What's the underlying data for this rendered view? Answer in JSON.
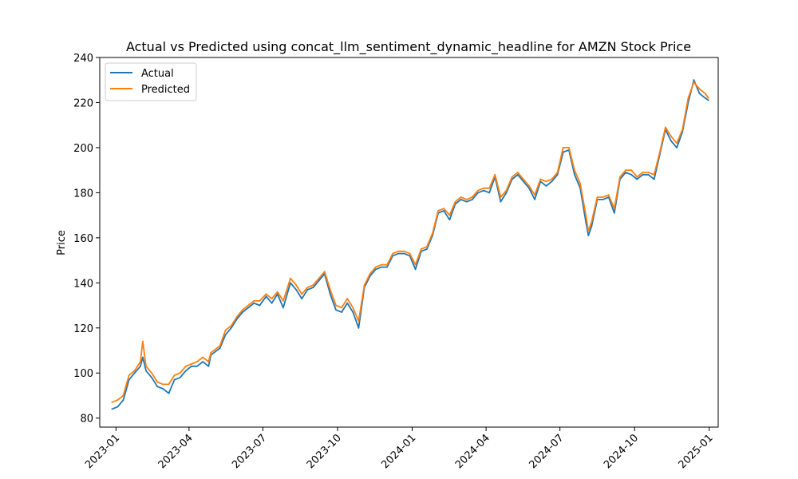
{
  "chart_data": {
    "type": "line",
    "title": "Actual vs Predicted using concat_llm_sentiment_dynamic_headline for AMZN Stock Price",
    "xlabel": "",
    "ylabel": "Price",
    "xlim": [
      "2022-12-12",
      "2025-01-12"
    ],
    "ylim": [
      76,
      240
    ],
    "x_ticks": [
      "2023-01",
      "2023-04",
      "2023-07",
      "2023-10",
      "2024-01",
      "2024-04",
      "2024-07",
      "2024-10",
      "2025-01"
    ],
    "y_ticks": [
      80,
      100,
      120,
      140,
      160,
      180,
      200,
      220,
      240
    ],
    "grid": false,
    "legend": {
      "placement": "upper-left",
      "entries": [
        "Actual",
        "Predicted"
      ]
    },
    "colors": {
      "Actual": "#1f77b4",
      "Predicted": "#ff7f0e"
    },
    "x": [
      "2022-12-27",
      "2023-01-03",
      "2023-01-10",
      "2023-01-17",
      "2023-01-24",
      "2023-01-31",
      "2023-02-03",
      "2023-02-07",
      "2023-02-14",
      "2023-02-21",
      "2023-02-28",
      "2023-03-07",
      "2023-03-14",
      "2023-03-21",
      "2023-03-28",
      "2023-04-04",
      "2023-04-11",
      "2023-04-18",
      "2023-04-25",
      "2023-04-28",
      "2023-05-09",
      "2023-05-16",
      "2023-05-23",
      "2023-05-30",
      "2023-06-06",
      "2023-06-13",
      "2023-06-20",
      "2023-06-27",
      "2023-07-05",
      "2023-07-12",
      "2023-07-19",
      "2023-07-26",
      "2023-08-04",
      "2023-08-11",
      "2023-08-18",
      "2023-08-25",
      "2023-09-01",
      "2023-09-08",
      "2023-09-15",
      "2023-09-22",
      "2023-09-29",
      "2023-10-06",
      "2023-10-13",
      "2023-10-20",
      "2023-10-27",
      "2023-11-03",
      "2023-11-10",
      "2023-11-17",
      "2023-11-24",
      "2023-12-01",
      "2023-12-08",
      "2023-12-15",
      "2023-12-22",
      "2023-12-29",
      "2024-01-05",
      "2024-01-12",
      "2024-01-19",
      "2024-01-26",
      "2024-02-02",
      "2024-02-09",
      "2024-02-16",
      "2024-02-23",
      "2024-03-01",
      "2024-03-08",
      "2024-03-15",
      "2024-03-22",
      "2024-03-29",
      "2024-04-05",
      "2024-04-12",
      "2024-04-19",
      "2024-04-26",
      "2024-05-03",
      "2024-05-10",
      "2024-05-17",
      "2024-05-24",
      "2024-05-31",
      "2024-06-07",
      "2024-06-14",
      "2024-06-21",
      "2024-06-28",
      "2024-07-05",
      "2024-07-12",
      "2024-07-19",
      "2024-07-26",
      "2024-08-02",
      "2024-08-05",
      "2024-08-09",
      "2024-08-16",
      "2024-08-23",
      "2024-08-30",
      "2024-09-06",
      "2024-09-13",
      "2024-09-20",
      "2024-09-27",
      "2024-10-04",
      "2024-10-11",
      "2024-10-18",
      "2024-10-25",
      "2024-11-01",
      "2024-11-08",
      "2024-11-15",
      "2024-11-22",
      "2024-11-29",
      "2024-12-06",
      "2024-12-13",
      "2024-12-20",
      "2024-12-27",
      "2024-12-31"
    ],
    "series": [
      {
        "name": "Actual",
        "values": [
          84,
          85,
          88,
          97,
          100,
          103,
          107,
          101,
          98,
          94,
          93,
          91,
          97,
          98,
          101,
          103,
          103,
          105,
          103,
          108,
          111,
          117,
          120,
          124,
          127,
          129,
          131,
          130,
          134,
          131,
          135,
          129,
          140,
          137,
          133,
          137,
          138,
          141,
          144,
          135,
          128,
          127,
          131,
          127,
          120,
          138,
          143,
          146,
          147,
          147,
          152,
          153,
          153,
          152,
          146,
          154,
          155,
          161,
          171,
          172,
          168,
          175,
          177,
          176,
          177,
          180,
          181,
          180,
          187,
          176,
          180,
          186,
          188,
          185,
          182,
          177,
          185,
          183,
          185,
          188,
          198,
          199,
          188,
          182,
          167,
          161,
          165,
          177,
          177,
          178,
          171,
          186,
          189,
          188,
          186,
          188,
          188,
          186,
          197,
          208,
          203,
          200,
          207,
          220,
          230,
          224,
          222,
          221
        ]
      },
      {
        "name": "Predicted",
        "values": [
          87,
          88,
          90,
          99,
          101,
          105,
          114,
          103,
          100,
          96,
          95,
          95,
          99,
          100,
          103,
          104,
          105,
          107,
          105,
          109,
          112,
          119,
          121,
          125,
          128,
          130,
          132,
          132,
          135,
          133,
          136,
          132,
          142,
          139,
          135,
          138,
          139,
          142,
          145,
          137,
          130,
          129,
          133,
          129,
          123,
          139,
          144,
          147,
          148,
          148,
          153,
          154,
          154,
          153,
          148,
          155,
          156,
          162,
          172,
          173,
          170,
          176,
          178,
          177,
          178,
          181,
          182,
          182,
          188,
          178,
          181,
          187,
          189,
          186,
          183,
          179,
          186,
          185,
          186,
          189,
          200,
          200,
          190,
          184,
          170,
          163,
          167,
          178,
          178,
          179,
          173,
          187,
          190,
          190,
          187,
          189,
          189,
          188,
          198,
          209,
          205,
          202,
          208,
          222,
          229,
          226,
          224,
          222
        ]
      }
    ]
  }
}
